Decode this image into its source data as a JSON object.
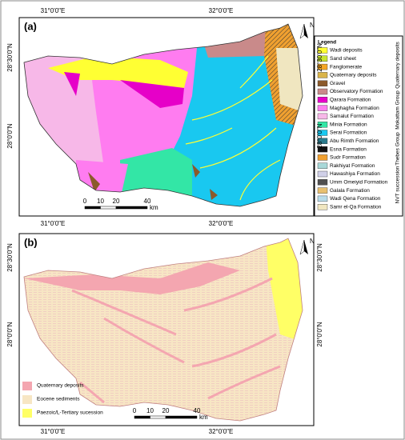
{
  "panel_a": {
    "label": "(a)",
    "lon_labels": [
      "31°0'0\"E",
      "32°0'0\"E"
    ],
    "lat_labels": [
      "28°30'0\"N",
      "28°0'0\"N"
    ],
    "north": "N",
    "legend": {
      "title": "Legend",
      "items": [
        {
          "label": "Wadi deposits",
          "color": "#ffff33"
        },
        {
          "label": "Sand sheet",
          "color": "#c8e632"
        },
        {
          "label": "Fanglomerate",
          "color": "#f5a623"
        },
        {
          "label": "Quaternary deposits",
          "color": "#d9b44a"
        },
        {
          "label": "Gravel",
          "color": "#8b5a2b"
        },
        {
          "label": "Observatory Formation",
          "color": "#c98a8a"
        },
        {
          "label": "Qarara Formation",
          "color": "#e600c8"
        },
        {
          "label": "Maghagha Formation",
          "color": "#ff7cf0"
        },
        {
          "label": "Samalut Formation",
          "color": "#f7b8e8"
        },
        {
          "label": "Minia Formation",
          "color": "#33e6a6"
        },
        {
          "label": "Serai Formation",
          "color": "#19c8f0"
        },
        {
          "label": "Abu Rimth Formation",
          "color": "#2a7a8c"
        },
        {
          "label": "Esna Formation",
          "color": "#111111"
        },
        {
          "label": "Sudr Formation",
          "color": "#f0a030"
        },
        {
          "label": "Rakhiyat Formation",
          "color": "#a8d8d8"
        },
        {
          "label": "Hawashiya Formation",
          "color": "#d0d0e8"
        },
        {
          "label": "Umm Omeiyid Formation",
          "color": "#505050"
        },
        {
          "label": "Galala Formation",
          "color": "#e8c070"
        },
        {
          "label": "Wadi Qena Formation",
          "color": "#b8dcea"
        },
        {
          "label": "Samr el-Qa Formation",
          "color": "#f0e6c0"
        }
      ]
    },
    "groups": [
      "Quaternary deposits",
      "Mokattam Group",
      "Thebes Group",
      "NVT succession"
    ],
    "scale": {
      "ticks": [
        0,
        10,
        20,
        40
      ],
      "unit": "km"
    }
  },
  "panel_b": {
    "label": "(b)",
    "lon_labels": [
      "31°0'0\"E",
      "32°0'0\"E"
    ],
    "lat_labels": [
      "28°30'0\"N",
      "28°0'0\"N"
    ],
    "north": "N",
    "legend": {
      "items": [
        {
          "label": "Quaternary deposits",
          "color": "#f4a6b0"
        },
        {
          "label": "Eocene sediments",
          "color": "#f7e6c4"
        },
        {
          "label": "Paezoic/L-Tertiary sucession",
          "color": "#ffff66"
        }
      ]
    },
    "scale": {
      "ticks": [
        0,
        10,
        20,
        40
      ],
      "unit": "km"
    }
  }
}
